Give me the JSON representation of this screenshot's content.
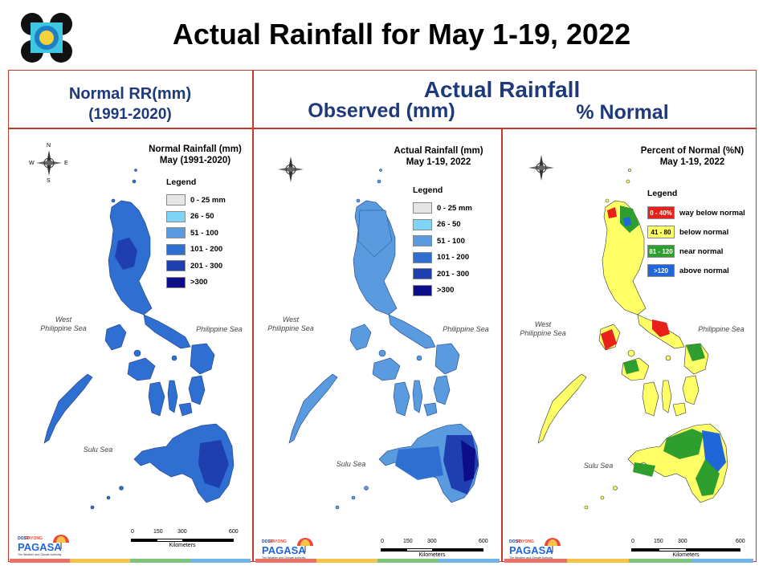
{
  "title": "Actual Rainfall for May 1-19, 2022",
  "header": {
    "normal": [
      "Normal RR(mm)",
      "(1991-2020)"
    ],
    "actual": "Actual Rainfall",
    "observed": "Observed (mm)",
    "percent": "% Normal"
  },
  "panels": [
    {
      "title": [
        "Normal Rainfall (mm)",
        "May (1991-2020)"
      ],
      "legend_title": "Legend",
      "legend": [
        {
          "label": "0 - 25 mm",
          "color": "#e6e6e6"
        },
        {
          "label": "26 - 50",
          "color": "#7fd4f5"
        },
        {
          "label": "51 - 100",
          "color": "#5a9be0"
        },
        {
          "label": "101 - 200",
          "color": "#2f6fd1"
        },
        {
          "label": "201 - 300",
          "color": "#1f3fb0"
        },
        {
          "label": ">300",
          "color": "#0d0d8a"
        }
      ]
    },
    {
      "title": [
        "Actual Rainfall (mm)",
        "May 1-19, 2022"
      ],
      "legend_title": "Legend",
      "legend": [
        {
          "label": "0 - 25 mm",
          "color": "#e6e6e6"
        },
        {
          "label": "26 - 50",
          "color": "#7fd4f5"
        },
        {
          "label": "51 - 100",
          "color": "#5a9be0"
        },
        {
          "label": "101 - 200",
          "color": "#2f6fd1"
        },
        {
          "label": "201 - 300",
          "color": "#1f3fb0"
        },
        {
          "label": ">300",
          "color": "#0d0d8a"
        }
      ]
    },
    {
      "title": [
        "Percent of Normal (%N)",
        "May 1-19, 2022"
      ],
      "legend_title": "Legend",
      "legend": [
        {
          "label": "0 - 40%",
          "desc": "way below normal",
          "color": "#e8211b"
        },
        {
          "label": "41 - 80",
          "desc": "below normal",
          "color": "#ffff66"
        },
        {
          "label": "81 - 120",
          "desc": "near normal",
          "color": "#2e9e2e"
        },
        {
          "label": ">120",
          "desc": "above normal",
          "color": "#1f66d9"
        }
      ]
    }
  ],
  "labels": {
    "west_sea": [
      "West",
      "Philippine Sea"
    ],
    "phil_sea": "Philippine Sea",
    "sulu_sea": "Sulu Sea",
    "compass": {
      "n": "N",
      "s": "S",
      "e": "E",
      "w": "W"
    },
    "scale": [
      "0",
      "150",
      "300",
      "600"
    ],
    "scale_unit": "Kilometers"
  },
  "brand": {
    "dost": "DOST",
    "payong": "PAYONG",
    "pagasa": "PAGASA",
    "tagline": "The Weather and Climate Authority"
  },
  "colors": {
    "header_text": "#1f3a7a",
    "frame": "#c0392b"
  }
}
